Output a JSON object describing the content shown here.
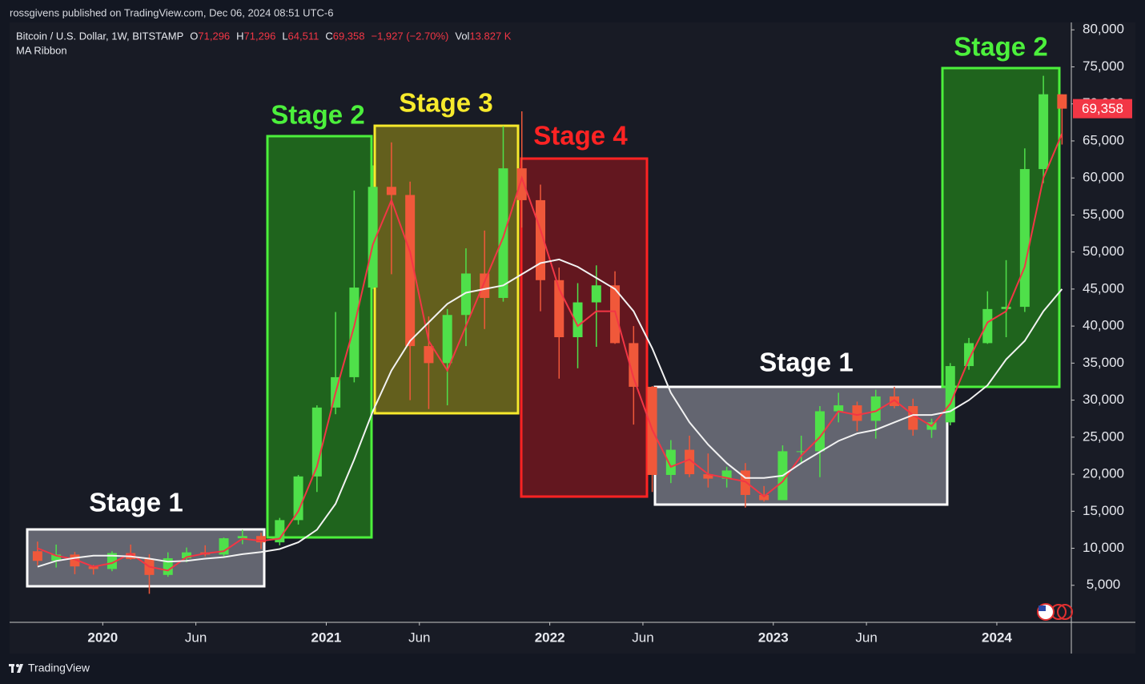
{
  "header": {
    "published": "rossgivens published on TradingView.com, Dec 06, 2024 08:51 UTC-6",
    "symbol": "Bitcoin / U.S. Dollar, 1W, BITSTAMP",
    "quote": [
      {
        "key": "O",
        "value": "71,296"
      },
      {
        "key": "H",
        "value": "71,296"
      },
      {
        "key": "L",
        "value": "64,511"
      },
      {
        "key": "C",
        "value": "69,358"
      }
    ],
    "change": "−1,927 (−2.70%)",
    "volume_key": "Vol",
    "volume": "13.827 K",
    "indicator": "MA Ribbon"
  },
  "footer": {
    "brand": "TradingView"
  },
  "chart_data": {
    "type": "candlestick",
    "x": [
      "2019-09",
      "2019-10",
      "2019-11",
      "2019-12",
      "2020-01",
      "2020-02",
      "2020-03",
      "2020-04",
      "2020-05",
      "2020-06",
      "2020-07",
      "2020-08",
      "2020-09",
      "2020-10",
      "2020-11",
      "2020-12",
      "2021-01",
      "2021-02",
      "2021-03",
      "2021-04",
      "2021-05",
      "2021-06",
      "2021-07",
      "2021-08",
      "2021-09",
      "2021-10",
      "2021-11",
      "2021-12",
      "2022-01",
      "2022-02",
      "2022-03",
      "2022-04",
      "2022-05",
      "2022-06",
      "2022-07",
      "2022-08",
      "2022-09",
      "2022-10",
      "2022-11",
      "2022-12",
      "2023-01",
      "2023-02",
      "2023-03",
      "2023-04",
      "2023-05",
      "2023-06",
      "2023-07",
      "2023-08",
      "2023-09",
      "2023-10",
      "2023-11",
      "2023-12",
      "2024-01",
      "2024-02",
      "2024-03",
      "2024-04"
    ],
    "open": [
      9600,
      8300,
      9150,
      7550,
      7200,
      9350,
      8550,
      6400,
      8650,
      9450,
      9150,
      11350,
      11650,
      10800,
      13800,
      19700,
      29000,
      33100,
      45200,
      58800,
      57700,
      37300,
      35000,
      41500,
      47100,
      43800,
      61300,
      57000,
      46200,
      38500,
      43200,
      45500,
      37700,
      31800,
      19900,
      23300,
      20000,
      19400,
      20500,
      17200,
      16500,
      23100,
      23100,
      28500,
      29300,
      27200,
      30500,
      29200,
      26000,
      27000,
      34600,
      37700,
      42300,
      42600,
      61200,
      71296
    ],
    "high": [
      10900,
      10500,
      9500,
      7750,
      9600,
      10500,
      9200,
      9450,
      10100,
      10400,
      11450,
      12500,
      12100,
      14100,
      19900,
      29300,
      41900,
      58300,
      61700,
      64800,
      59500,
      41300,
      42300,
      50500,
      52900,
      67000,
      69000,
      59100,
      47900,
      45800,
      48200,
      47400,
      40000,
      31900,
      24600,
      25200,
      22800,
      21000,
      21500,
      18400,
      23900,
      25200,
      29200,
      31000,
      29800,
      31400,
      31800,
      30200,
      27500,
      35000,
      38400,
      44700,
      48900,
      64000,
      73800,
      71296
    ],
    "low": [
      7700,
      7400,
      6500,
      6450,
      6900,
      8450,
      3850,
      6150,
      8100,
      8900,
      8900,
      10550,
      9900,
      10400,
      13200,
      17600,
      28100,
      32400,
      45000,
      47000,
      30000,
      28800,
      29300,
      37300,
      39600,
      43300,
      53300,
      42000,
      32900,
      34300,
      37200,
      37600,
      26700,
      17600,
      18800,
      19600,
      18200,
      18200,
      15500,
      16300,
      16500,
      21400,
      19600,
      27000,
      25800,
      24800,
      28900,
      25200,
      24900,
      26600,
      34100,
      37600,
      38500,
      41900,
      59300,
      64511
    ],
    "close": [
      8300,
      9150,
      7550,
      7200,
      9350,
      8550,
      6400,
      8650,
      9450,
      9150,
      11350,
      11650,
      10800,
      13800,
      19700,
      29000,
      33100,
      45200,
      58800,
      57700,
      37300,
      35000,
      41500,
      47100,
      43800,
      61300,
      57000,
      46200,
      38500,
      43200,
      45500,
      37700,
      31800,
      19900,
      23300,
      20000,
      19400,
      20500,
      17200,
      16500,
      23100,
      23100,
      28500,
      29300,
      27200,
      30500,
      29200,
      26000,
      27000,
      34600,
      37700,
      42300,
      42600,
      61200,
      71300,
      69358
    ],
    "up_color": "#4fe04a",
    "down_color": "#f0583a",
    "lines": [
      {
        "color": "#f23645",
        "values": [
          10000,
          9000,
          8500,
          7500,
          8000,
          9300,
          7500,
          7000,
          8800,
          9300,
          9600,
          11300,
          11000,
          11300,
          15000,
          21000,
          31000,
          40000,
          51000,
          57000,
          50000,
          38000,
          34000,
          40000,
          46000,
          52000,
          60000,
          53000,
          45000,
          40000,
          42000,
          42000,
          33000,
          26000,
          21000,
          22000,
          20000,
          19500,
          19000,
          17000,
          19000,
          22500,
          25000,
          28500,
          28000,
          28500,
          30000,
          28000,
          26500,
          29500,
          35500,
          40500,
          42000,
          48000,
          60000,
          66000
        ]
      },
      {
        "color": "#f2f2f2",
        "values": [
          7500,
          8300,
          8700,
          9000,
          9000,
          8900,
          8600,
          8200,
          8300,
          8600,
          8800,
          9200,
          9500,
          9900,
          10800,
          12500,
          16000,
          22000,
          28500,
          34000,
          38000,
          40500,
          43000,
          44500,
          45000,
          45500,
          47000,
          48500,
          49000,
          48000,
          46500,
          45000,
          42000,
          37000,
          31000,
          27000,
          24000,
          21500,
          19500,
          19500,
          19800,
          21500,
          23000,
          24500,
          25500,
          26000,
          27000,
          28000,
          28000,
          28500,
          30000,
          32000,
          35500,
          38000,
          42000,
          45000
        ]
      }
    ],
    "xlim": [
      "2019-08",
      "2024-05"
    ],
    "xticks": [
      {
        "value": "2020-01",
        "label": "2020"
      },
      {
        "value": "2020-06",
        "label": "Jun"
      },
      {
        "value": "2021-01",
        "label": "2021"
      },
      {
        "value": "2021-06",
        "label": "Jun"
      },
      {
        "value": "2022-01",
        "label": "2022"
      },
      {
        "value": "2022-06",
        "label": "Jun"
      },
      {
        "value": "2023-01",
        "label": "2023"
      },
      {
        "value": "2023-06",
        "label": "Jun"
      },
      {
        "value": "2024-01",
        "label": "2024"
      }
    ],
    "ylim": [
      0,
      81000
    ],
    "yticks": [
      {
        "value": 5000,
        "label": "5,000"
      },
      {
        "value": 10000,
        "label": "10,000"
      },
      {
        "value": 15000,
        "label": "15,000"
      },
      {
        "value": 20000,
        "label": "20,000"
      },
      {
        "value": 25000,
        "label": "25,000"
      },
      {
        "value": 30000,
        "label": "30,000"
      },
      {
        "value": 35000,
        "label": "35,000"
      },
      {
        "value": 40000,
        "label": "40,000"
      },
      {
        "value": 45000,
        "label": "45,000"
      },
      {
        "value": 50000,
        "label": "50,000"
      },
      {
        "value": 55000,
        "label": "55,000"
      },
      {
        "value": 60000,
        "label": "60,000"
      },
      {
        "value": 65000,
        "label": "65,000"
      },
      {
        "value": 70000,
        "label": "70,000"
      },
      {
        "value": 75000,
        "label": "75,000"
      },
      {
        "value": 80000,
        "label": "80,000"
      }
    ],
    "grid": false,
    "annotations": [
      {
        "text": "Stage 1",
        "color": "#ffffff",
        "fill": "rgba(190,192,205,0.45)"
      },
      {
        "text": "Stage 2",
        "color": "#4cf03c",
        "fill": "rgba(40,190,20,0.45)"
      },
      {
        "text": "Stage 3",
        "color": "#f7ea2c",
        "fill": "rgba(190,180,20,0.45)"
      },
      {
        "text": "Stage 4",
        "color": "#ff2323",
        "fill": "rgba(190,20,25,0.45)"
      },
      {
        "text": "Stage 1",
        "color": "#ffffff",
        "fill": "rgba(190,192,205,0.45)"
      },
      {
        "text": "Stage 2",
        "color": "#4cf03c",
        "fill": "rgba(40,190,20,0.45)"
      }
    ]
  }
}
